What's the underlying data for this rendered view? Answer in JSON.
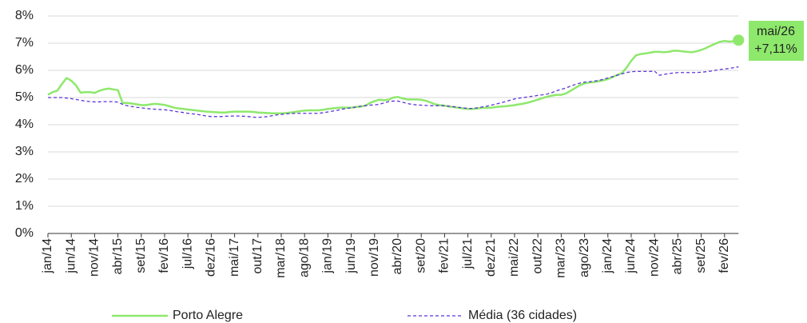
{
  "chart_data": {
    "type": "line",
    "categories": [
      "jan/14",
      null,
      null,
      null,
      null,
      "jun/14",
      null,
      null,
      null,
      null,
      "nov/14",
      null,
      null,
      null,
      null,
      "abr/15",
      null,
      null,
      null,
      null,
      "set/15",
      null,
      null,
      null,
      null,
      "fev/16",
      null,
      null,
      null,
      null,
      "jul/16",
      null,
      null,
      null,
      null,
      "dez/16",
      null,
      null,
      null,
      null,
      "mai/17",
      null,
      null,
      null,
      null,
      "out/17",
      null,
      null,
      null,
      null,
      "mar/18",
      null,
      null,
      null,
      null,
      "ago/18",
      null,
      null,
      null,
      null,
      "jan/19",
      null,
      null,
      null,
      null,
      "jun/19",
      null,
      null,
      null,
      null,
      "nov/19",
      null,
      null,
      null,
      null,
      "abr/20",
      null,
      null,
      null,
      null,
      "set/20",
      null,
      null,
      null,
      null,
      "fev/21",
      null,
      null,
      null,
      null,
      "jul/21",
      null,
      null,
      null,
      null,
      "dez/21",
      null,
      null,
      null,
      null,
      "mai/22",
      null,
      null,
      null,
      null,
      "out/22",
      null,
      null,
      null,
      null,
      "mar/23",
      null,
      null,
      null,
      null,
      "ago/23",
      null,
      null,
      null,
      null,
      "jan/24",
      null,
      null,
      null,
      null,
      "jun/24",
      null,
      null,
      null,
      null,
      "nov/24",
      null,
      null,
      null,
      null,
      "abr/25",
      null,
      null,
      null,
      null,
      "set/25",
      null,
      null,
      null,
      null,
      "fev/26",
      null,
      null,
      null
    ],
    "series": [
      {
        "name": "Porto Alegre",
        "color": "#8ee86c",
        "dashed": false,
        "values": [
          5.1,
          5.2,
          5.25,
          5.5,
          5.72,
          5.62,
          5.45,
          5.18,
          5.2,
          5.2,
          5.17,
          5.25,
          5.3,
          5.33,
          5.3,
          5.27,
          4.8,
          4.8,
          4.78,
          4.75,
          4.72,
          4.72,
          4.75,
          4.77,
          4.75,
          4.73,
          4.68,
          4.63,
          4.6,
          4.58,
          4.56,
          4.54,
          4.52,
          4.5,
          4.48,
          4.47,
          4.46,
          4.45,
          4.45,
          4.47,
          4.48,
          4.48,
          4.48,
          4.48,
          4.47,
          4.45,
          4.44,
          4.43,
          4.42,
          4.42,
          4.42,
          4.43,
          4.45,
          4.47,
          4.5,
          4.52,
          4.53,
          4.53,
          4.53,
          4.55,
          4.58,
          4.6,
          4.62,
          4.63,
          4.63,
          4.63,
          4.65,
          4.67,
          4.7,
          4.8,
          4.87,
          4.92,
          4.9,
          4.92,
          5.0,
          5.02,
          4.97,
          4.93,
          4.93,
          4.93,
          4.92,
          4.88,
          4.82,
          4.75,
          4.72,
          4.7,
          4.67,
          4.65,
          4.62,
          4.6,
          4.58,
          4.58,
          4.6,
          4.62,
          4.62,
          4.63,
          4.65,
          4.67,
          4.68,
          4.7,
          4.72,
          4.75,
          4.78,
          4.82,
          4.87,
          4.92,
          4.98,
          5.03,
          5.07,
          5.1,
          5.1,
          5.15,
          5.25,
          5.35,
          5.45,
          5.52,
          5.55,
          5.57,
          5.6,
          5.63,
          5.68,
          5.75,
          5.83,
          5.9,
          6.1,
          6.35,
          6.55,
          6.6,
          6.62,
          6.65,
          6.68,
          6.68,
          6.67,
          6.68,
          6.72,
          6.72,
          6.7,
          6.68,
          6.67,
          6.7,
          6.75,
          6.82,
          6.9,
          6.98,
          7.05,
          7.08,
          7.06,
          7.07,
          7.11
        ]
      },
      {
        "name": "Média (36 cidades)",
        "color": "#5b34d9",
        "dashed": true,
        "values": [
          5.0,
          5.0,
          5.0,
          5.0,
          4.98,
          4.96,
          4.93,
          4.9,
          4.87,
          4.85,
          4.84,
          4.84,
          4.85,
          4.85,
          4.85,
          4.83,
          4.75,
          4.7,
          4.67,
          4.64,
          4.62,
          4.6,
          4.58,
          4.57,
          4.56,
          4.55,
          4.53,
          4.5,
          4.47,
          4.45,
          4.42,
          4.4,
          4.38,
          4.35,
          4.32,
          4.3,
          4.3,
          4.3,
          4.31,
          4.32,
          4.32,
          4.32,
          4.31,
          4.3,
          4.28,
          4.27,
          4.28,
          4.3,
          4.33,
          4.36,
          4.38,
          4.4,
          4.41,
          4.42,
          4.42,
          4.42,
          4.42,
          4.42,
          4.42,
          4.44,
          4.47,
          4.5,
          4.53,
          4.57,
          4.6,
          4.62,
          4.65,
          4.68,
          4.7,
          4.72,
          4.73,
          4.75,
          4.8,
          4.85,
          4.87,
          4.87,
          4.83,
          4.78,
          4.75,
          4.73,
          4.72,
          4.71,
          4.7,
          4.7,
          4.7,
          4.7,
          4.68,
          4.66,
          4.64,
          4.62,
          4.6,
          4.6,
          4.62,
          4.65,
          4.68,
          4.72,
          4.76,
          4.8,
          4.85,
          4.9,
          4.95,
          4.98,
          5.0,
          5.03,
          5.05,
          5.08,
          5.1,
          5.13,
          5.18,
          5.25,
          5.3,
          5.35,
          5.42,
          5.48,
          5.53,
          5.57,
          5.58,
          5.6,
          5.63,
          5.67,
          5.72,
          5.77,
          5.82,
          5.87,
          5.92,
          5.95,
          5.96,
          5.96,
          5.96,
          5.96,
          5.97,
          5.82,
          5.85,
          5.88,
          5.9,
          5.92,
          5.92,
          5.92,
          5.92,
          5.92,
          5.93,
          5.95,
          5.97,
          6.0,
          6.03,
          6.05,
          6.07,
          6.1,
          6.13
        ]
      }
    ],
    "ylim": [
      0,
      8
    ],
    "yticks": [
      {
        "value": 0,
        "label": "0%"
      },
      {
        "value": 1,
        "label": "1%"
      },
      {
        "value": 2,
        "label": "2%"
      },
      {
        "value": 3,
        "label": "3%"
      },
      {
        "value": 4,
        "label": "4%"
      },
      {
        "value": 5,
        "label": "5%"
      },
      {
        "value": 6,
        "label": "6%"
      },
      {
        "value": 7,
        "label": "7%"
      },
      {
        "value": 8,
        "label": "8%"
      }
    ],
    "grid": true,
    "legend": "bottom",
    "annotation": {
      "lines": [
        "mai/26",
        "+7,11%"
      ],
      "color": "#8ee86c"
    }
  }
}
